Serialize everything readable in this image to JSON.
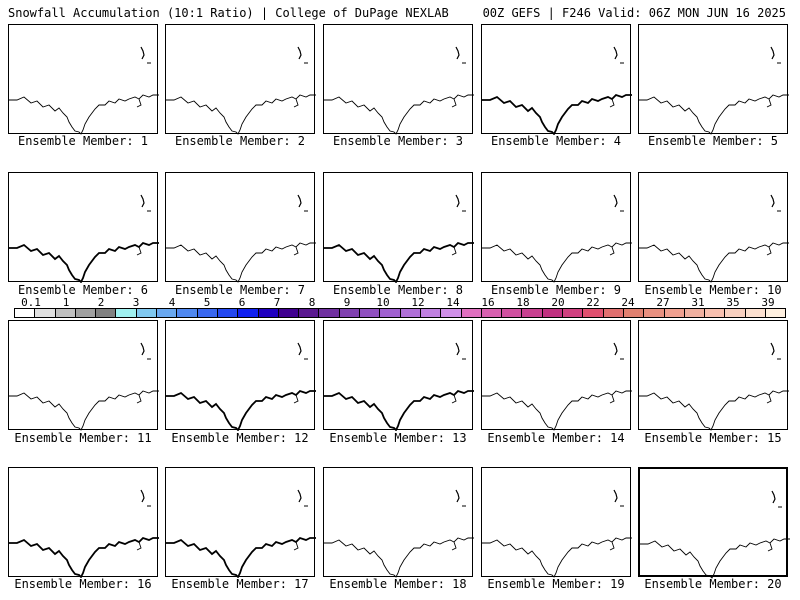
{
  "header": {
    "left": "Snowfall Accumulation (10:1 Ratio) | College of DuPage NEXLAB",
    "right": "00Z GEFS | F246 Valid: 06Z MON JUN 16 2025"
  },
  "chart_data": {
    "type": "heatmap",
    "title": "Snowfall Accumulation (10:1 Ratio)",
    "panels": [
      {
        "label": "Ensemble Member: 1",
        "snow": "none"
      },
      {
        "label": "Ensemble Member: 2",
        "snow": "none"
      },
      {
        "label": "Ensemble Member: 3",
        "snow": "none"
      },
      {
        "label": "Ensemble Member: 4",
        "snow": "none"
      },
      {
        "label": "Ensemble Member: 5",
        "snow": "none"
      },
      {
        "label": "Ensemble Member: 6",
        "snow": "none"
      },
      {
        "label": "Ensemble Member: 7",
        "snow": "none"
      },
      {
        "label": "Ensemble Member: 8",
        "snow": "none"
      },
      {
        "label": "Ensemble Member: 9",
        "snow": "none"
      },
      {
        "label": "Ensemble Member: 10",
        "snow": "none"
      },
      {
        "label": "Ensemble Member: 11",
        "snow": "none"
      },
      {
        "label": "Ensemble Member: 12",
        "snow": "none"
      },
      {
        "label": "Ensemble Member: 13",
        "snow": "none"
      },
      {
        "label": "Ensemble Member: 14",
        "snow": "none"
      },
      {
        "label": "Ensemble Member: 15",
        "snow": "none"
      },
      {
        "label": "Ensemble Member: 16",
        "snow": "none"
      },
      {
        "label": "Ensemble Member: 17",
        "snow": "none"
      },
      {
        "label": "Ensemble Member: 18",
        "snow": "none"
      },
      {
        "label": "Ensemble Member: 19",
        "snow": "none"
      },
      {
        "label": "Ensemble Member: 20",
        "snow": "none"
      }
    ],
    "colorbar": {
      "labels": [
        "0.1",
        "1",
        "2",
        "3",
        "4",
        "5",
        "6",
        "7",
        "8",
        "9",
        "10",
        "12",
        "14",
        "16",
        "18",
        "20",
        "22",
        "24",
        "27",
        "31",
        "35",
        "39"
      ],
      "colors": [
        "#ffffff",
        "#e0e0e0",
        "#c0c0c0",
        "#a0a0a0",
        "#808080",
        "#a0f0f0",
        "#80c8f0",
        "#6aa8f0",
        "#5088f0",
        "#3a68f0",
        "#2448f0",
        "#1020f0",
        "#2000c0",
        "#400090",
        "#5a1890",
        "#7030a0",
        "#8040b0",
        "#9050c0",
        "#a060d0",
        "#b070d8",
        "#c080e0",
        "#d090e8",
        "#e070c0",
        "#d860b0",
        "#d050a0",
        "#c84090",
        "#c03080",
        "#d04080",
        "#e05070",
        "#e07070",
        "#e08070",
        "#e89080",
        "#f0a090",
        "#f0b0a0",
        "#f8c0b0",
        "#f8d0c0",
        "#fce0d0",
        "#fff0e0"
      ]
    }
  }
}
